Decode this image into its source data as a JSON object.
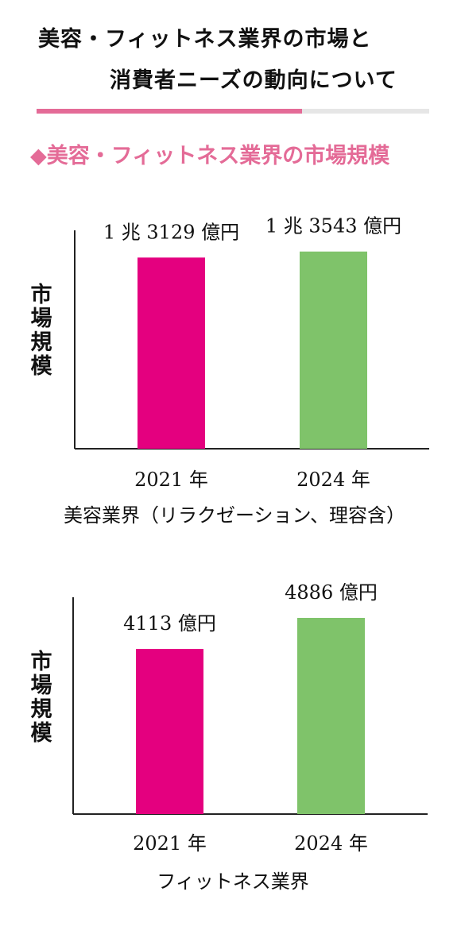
{
  "header": {
    "title_line1": "美容・フィットネス業界の市場と",
    "title_line2": "消費者ニーズの動向について",
    "accent_color": "#e46b97"
  },
  "section": {
    "heading": "◆美容・フィットネス業界の市場規模",
    "heading_color": "#e46b97"
  },
  "chart_data": [
    {
      "type": "bar",
      "categories": [
        "2021 年",
        "2024 年"
      ],
      "values": [
        13129,
        13543
      ],
      "value_labels": [
        "1 兆 3129 億円",
        "1 兆 3543 億円"
      ],
      "unit": "億円",
      "ylabel": "市場規模",
      "caption": "美容業界（リラクゼーション、理容含）",
      "bar_colors": [
        "#e4007f",
        "#7fc36a"
      ],
      "ylim": [
        0,
        15000
      ]
    },
    {
      "type": "bar",
      "categories": [
        "2021 年",
        "2024 年"
      ],
      "values": [
        4113,
        4886
      ],
      "value_labels": [
        "4113 億円",
        "4886 億円"
      ],
      "unit": "億円",
      "ylabel": "市場規模",
      "caption": "フィットネス業界",
      "bar_colors": [
        "#e4007f",
        "#7fc36a"
      ],
      "ylim": [
        0,
        5400
      ]
    }
  ]
}
